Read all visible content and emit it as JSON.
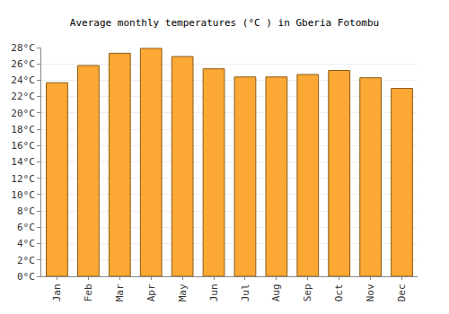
{
  "chart_data": {
    "type": "bar",
    "title": "Average monthly temperatures (°C ) in Gberia Fotombu",
    "categories": [
      "Jan",
      "Feb",
      "Mar",
      "Apr",
      "May",
      "Jun",
      "Jul",
      "Aug",
      "Sep",
      "Oct",
      "Nov",
      "Dec"
    ],
    "values": [
      23.7,
      25.8,
      27.3,
      27.9,
      26.9,
      25.4,
      24.4,
      24.4,
      24.7,
      25.2,
      24.3,
      23.0
    ],
    "color": "#fba834",
    "ylim": [
      0,
      28
    ],
    "yticks": [
      {
        "value": 0,
        "label": "0°C"
      },
      {
        "value": 2,
        "label": "2°C"
      },
      {
        "value": 4,
        "label": "4°C"
      },
      {
        "value": 6,
        "label": "6°C"
      },
      {
        "value": 8,
        "label": "8°C"
      },
      {
        "value": 10,
        "label": "10°C"
      },
      {
        "value": 12,
        "label": "12°C"
      },
      {
        "value": 14,
        "label": "14°C"
      },
      {
        "value": 16,
        "label": "16°C"
      },
      {
        "value": 18,
        "label": "18°C"
      },
      {
        "value": 20,
        "label": "20°C"
      },
      {
        "value": 22,
        "label": "22°C"
      },
      {
        "value": 24,
        "label": "24°C"
      },
      {
        "value": 26,
        "label": "26°C"
      },
      {
        "value": 28,
        "label": "28°C"
      }
    ],
    "grid": true
  }
}
